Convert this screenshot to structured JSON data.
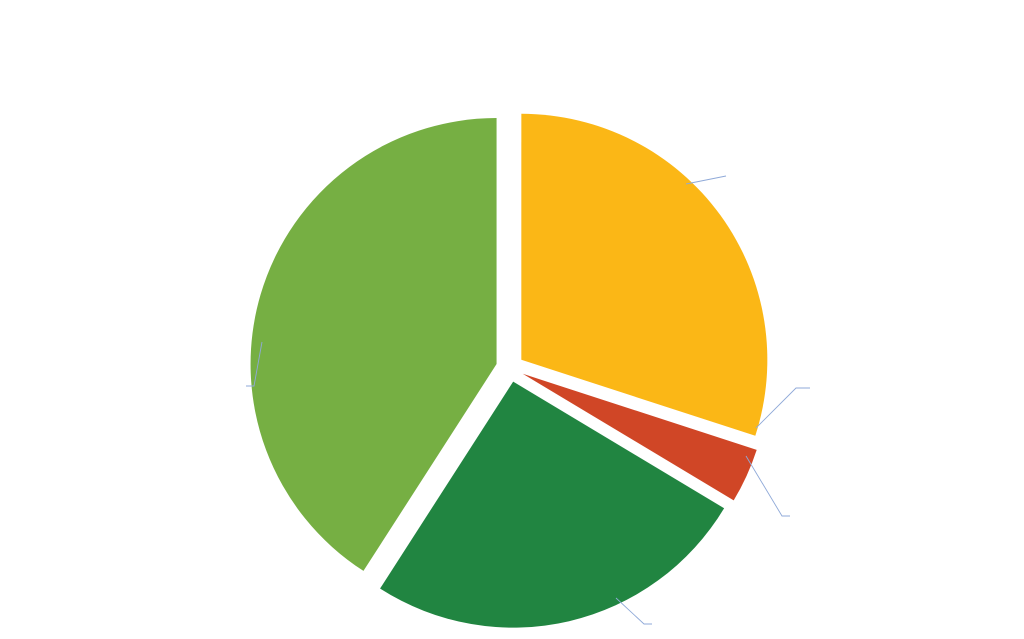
{
  "chart_data": {
    "type": "pie",
    "title": "",
    "start_angle_deg": 0,
    "direction": "clockwise",
    "slices": [
      {
        "value": 30.0,
        "color": "#FBB716"
      },
      {
        "value": 3.6,
        "color": "#D04626"
      },
      {
        "value": 25.5,
        "color": "#218541"
      },
      {
        "value": 40.9,
        "color": "#76AF43"
      }
    ],
    "exploded": true,
    "data_labels_visible": false,
    "leader_line_color": "#8FA9D8",
    "legend": "none"
  }
}
